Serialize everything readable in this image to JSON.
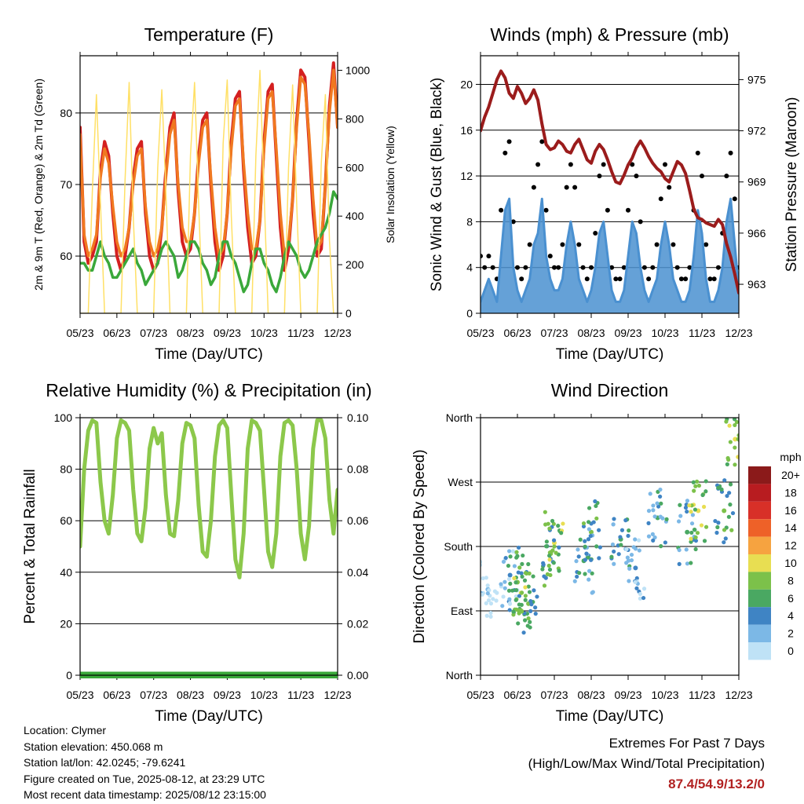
{
  "chart_data": [
    {
      "type": "line",
      "title": "Temperature (F)",
      "xlabel": "Time (Day/UTC)",
      "ylabel": "2m & 9m T (Red, Orange) & 2m Td (Green)",
      "y2label": "Solar Insolation (Yellow)",
      "x_ticks": [
        "05/23",
        "06/23",
        "07/23",
        "08/23",
        "09/23",
        "10/23",
        "11/23",
        "12/23"
      ],
      "ylim": [
        52,
        88
      ],
      "y_ticks": [
        60,
        70,
        80
      ],
      "y2lim": [
        0,
        1060
      ],
      "y2_ticks": [
        0,
        200,
        400,
        600,
        800,
        1000
      ],
      "grid": true,
      "series": [
        {
          "name": "2m T",
          "color": "#d42020",
          "values": [
            78,
            62,
            59,
            60,
            62,
            72,
            76,
            74,
            66,
            60,
            58,
            60,
            64,
            71,
            75,
            76,
            66,
            60,
            58,
            59,
            64,
            72,
            78,
            80,
            69,
            62,
            60,
            61,
            66,
            74,
            79,
            80,
            70,
            62,
            58,
            60,
            66,
            76,
            82,
            83,
            72,
            64,
            59,
            60,
            65,
            76,
            83,
            84,
            74,
            64,
            58,
            61,
            68,
            79,
            86,
            85,
            76,
            66,
            60,
            61,
            70,
            81,
            87,
            78
          ]
        },
        {
          "name": "9m T",
          "color": "#f07820",
          "values": [
            77,
            63,
            60,
            61,
            63,
            71,
            75,
            73,
            67,
            62,
            60,
            61,
            64,
            70,
            74,
            75,
            67,
            62,
            60,
            61,
            64,
            71,
            77,
            79,
            70,
            64,
            62,
            62,
            66,
            73,
            78,
            79,
            71,
            64,
            60,
            61,
            66,
            75,
            81,
            82,
            73,
            66,
            61,
            61,
            65,
            75,
            82,
            83,
            75,
            66,
            60,
            62,
            68,
            78,
            85,
            84,
            77,
            68,
            61,
            62,
            70,
            80,
            86,
            78
          ]
        },
        {
          "name": "2m Td",
          "color": "#3aa83a",
          "values": [
            59,
            59,
            58,
            58,
            60,
            62,
            60,
            59,
            57,
            57,
            58,
            59,
            60,
            61,
            59,
            58,
            56,
            57,
            58,
            59,
            61,
            62,
            61,
            60,
            57,
            58,
            60,
            62,
            62,
            61,
            59,
            58,
            56,
            57,
            60,
            62,
            62,
            60,
            59,
            57,
            55,
            56,
            59,
            61,
            61,
            59,
            58,
            56,
            55,
            57,
            60,
            62,
            61,
            60,
            58,
            57,
            58,
            60,
            62,
            63,
            64,
            66,
            69,
            68
          ]
        },
        {
          "name": "Solar Insolation",
          "color": "#ffe066",
          "axis": "y2",
          "values": [
            0,
            0,
            0,
            500,
            900,
            450,
            0,
            0,
            0,
            0,
            0,
            550,
            950,
            400,
            0,
            0,
            0,
            0,
            0,
            600,
            920,
            500,
            0,
            0,
            0,
            0,
            0,
            650,
            950,
            450,
            0,
            0,
            0,
            0,
            0,
            700,
            960,
            400,
            0,
            0,
            0,
            0,
            0,
            650,
            1000,
            500,
            0,
            0,
            0,
            0,
            0,
            600,
            940,
            450,
            0,
            0,
            0,
            0,
            0,
            620,
            900,
            300,
            0,
            0
          ]
        }
      ]
    },
    {
      "type": "scatter",
      "title": "Winds (mph) & Pressure (mb)",
      "xlabel": "Time (Day/UTC)",
      "ylabel": "Sonic Wind & Gust (Blue, Black)",
      "y2label": "Station Pressure (Maroon)",
      "x_ticks": [
        "05/23",
        "06/23",
        "07/23",
        "08/23",
        "09/23",
        "10/23",
        "11/23",
        "12/23"
      ],
      "ylim": [
        0,
        22.5
      ],
      "y_ticks": [
        0,
        4,
        8,
        12,
        16,
        20
      ],
      "y2lim": [
        961.3,
        976.4
      ],
      "y2_ticks": [
        963,
        966,
        969,
        972,
        975
      ],
      "grid": true,
      "series": [
        {
          "name": "Sonic Wind",
          "color": "#4a90d0",
          "values": [
            1,
            2,
            3,
            2,
            1,
            5,
            9,
            10,
            4,
            2,
            1,
            2,
            3,
            6,
            7,
            10,
            5,
            3,
            2,
            2,
            3,
            6,
            8,
            6,
            3,
            2,
            1,
            2,
            4,
            7,
            8,
            5,
            2,
            1,
            1,
            2,
            5,
            8,
            7,
            4,
            2,
            1,
            2,
            3,
            6,
            8,
            6,
            3,
            2,
            1,
            1,
            2,
            5,
            9,
            7,
            3,
            1,
            1,
            2,
            4,
            8,
            10,
            6,
            2
          ]
        },
        {
          "name": "Gust",
          "color": "#000000",
          "values": [
            5,
            4,
            5,
            4,
            3,
            9,
            14,
            15,
            8,
            4,
            3,
            4,
            6,
            11,
            13,
            15,
            9,
            5,
            4,
            4,
            6,
            11,
            13,
            11,
            6,
            4,
            3,
            4,
            7,
            12,
            13,
            9,
            4,
            3,
            3,
            4,
            9,
            13,
            12,
            8,
            4,
            3,
            4,
            6,
            10,
            13,
            11,
            6,
            4,
            3,
            3,
            4,
            9,
            14,
            12,
            6,
            3,
            3,
            4,
            7,
            12,
            14,
            10,
            4
          ]
        },
        {
          "name": "Station Pressure",
          "color": "#9b1c1c",
          "axis": "y2",
          "values": [
            972.0,
            972.8,
            973.4,
            974.2,
            975.0,
            975.5,
            975.1,
            974.2,
            973.9,
            974.6,
            974.2,
            973.6,
            973.9,
            974.4,
            973.8,
            972.4,
            971.2,
            970.9,
            971.0,
            971.4,
            971.2,
            970.8,
            970.7,
            971.2,
            971.5,
            970.9,
            970.3,
            970.1,
            970.8,
            971.2,
            970.9,
            970.3,
            969.6,
            969.0,
            968.9,
            969.4,
            970.0,
            970.4,
            971.0,
            971.4,
            971.0,
            970.5,
            970.1,
            969.8,
            969.6,
            969.2,
            969.0,
            969.6,
            970.2,
            970.0,
            969.5,
            968.5,
            967.4,
            966.9,
            966.8,
            966.6,
            966.5,
            966.4,
            966.8,
            966.5,
            965.4,
            964.6,
            963.6,
            962.5
          ]
        }
      ]
    },
    {
      "type": "line",
      "title": "Relative Humidity (%) & Precipitation (in)",
      "xlabel": "Time (Day/UTC)",
      "ylabel": "Percent & Total Rainfall",
      "x_ticks": [
        "05/23",
        "06/23",
        "07/23",
        "08/23",
        "09/23",
        "10/23",
        "11/23",
        "12/23"
      ],
      "ylim": [
        0,
        100
      ],
      "y_ticks": [
        0,
        20,
        40,
        60,
        80,
        100
      ],
      "y2lim": [
        0,
        0.1
      ],
      "y2_ticks": [
        "0.00",
        "0.02",
        "0.04",
        "0.06",
        "0.08",
        "0.10"
      ],
      "grid": true,
      "series": [
        {
          "name": "Relative Humidity",
          "color": "#8cc84b",
          "values": [
            50,
            80,
            95,
            99,
            98,
            75,
            60,
            55,
            70,
            92,
            99,
            98,
            95,
            72,
            55,
            52,
            65,
            88,
            96,
            90,
            94,
            70,
            55,
            54,
            68,
            90,
            98,
            97,
            92,
            66,
            48,
            46,
            60,
            85,
            97,
            99,
            96,
            70,
            45,
            38,
            55,
            88,
            99,
            98,
            95,
            72,
            48,
            42,
            55,
            85,
            98,
            99,
            97,
            80,
            55,
            45,
            58,
            88,
            99,
            99,
            92,
            68,
            55,
            72
          ]
        },
        {
          "name": "Total Precipitation",
          "color": "#3aa83a",
          "axis": "y2",
          "values": [
            0,
            0,
            0,
            0,
            0,
            0,
            0,
            0
          ]
        }
      ]
    },
    {
      "type": "scatter",
      "title": "Wind Direction",
      "xlabel": "Time (Day/UTC)",
      "ylabel": "Direction (Colored By Speed)",
      "x_ticks": [
        "05/23",
        "06/23",
        "07/23",
        "08/23",
        "09/23",
        "10/23",
        "11/23",
        "12/23"
      ],
      "ylim": [
        0,
        360
      ],
      "y_ticks": [
        {
          "value": 0,
          "label": "North"
        },
        {
          "value": 90,
          "label": "East"
        },
        {
          "value": 180,
          "label": "South"
        },
        {
          "value": 270,
          "label": "West"
        },
        {
          "value": 360,
          "label": "North"
        }
      ],
      "grid": true,
      "colorbar": {
        "title": "mph",
        "labels": [
          "20+",
          "18",
          "16",
          "14",
          "12",
          "10",
          "8",
          "6",
          "4",
          "2",
          "0"
        ],
        "colors": [
          "#8b1a1a",
          "#b81c20",
          "#d83028",
          "#ee6128",
          "#f6a340",
          "#e8de52",
          "#7cc14a",
          "#4aa862",
          "#3f84c4",
          "#7cb8e6",
          "#bfe2f6"
        ]
      },
      "points_summary": [
        {
          "x": 0.2,
          "dir": 120,
          "speed": 2
        },
        {
          "x": 0.8,
          "dir": 140,
          "speed": 4
        },
        {
          "x": 1.0,
          "dir": 130,
          "speed": 8
        },
        {
          "x": 1.1,
          "dir": 115,
          "speed": 10
        },
        {
          "x": 1.3,
          "dir": 100,
          "speed": 8
        },
        {
          "x": 1.9,
          "dir": 170,
          "speed": 8
        },
        {
          "x": 2.0,
          "dir": 185,
          "speed": 10
        },
        {
          "x": 2.8,
          "dir": 160,
          "speed": 6
        },
        {
          "x": 3.0,
          "dir": 200,
          "speed": 8
        },
        {
          "x": 3.8,
          "dir": 190,
          "speed": 6
        },
        {
          "x": 4.2,
          "dir": 150,
          "speed": 4
        },
        {
          "x": 4.8,
          "dir": 220,
          "speed": 6
        },
        {
          "x": 5.6,
          "dir": 200,
          "speed": 6
        },
        {
          "x": 5.9,
          "dir": 230,
          "speed": 10
        },
        {
          "x": 6.6,
          "dir": 230,
          "speed": 8
        },
        {
          "x": 6.9,
          "dir": 330,
          "speed": 10
        }
      ]
    }
  ],
  "footer": {
    "location": "Location: Clymer",
    "elevation": "Station elevation: 450.068 m",
    "latlon": "Station lat/lon: 42.0245; -79.6241",
    "created": "Figure created on Tue, 2025-08-12, at 23:29 UTC",
    "recent": "Most recent data timestamp: 2025/08/12 23:15:00"
  },
  "extremes": {
    "line1": "Extremes For Past 7 Days",
    "line2": "(High/Low/Max Wind/Total Precipitation)",
    "values": "87.4/54.9/13.2/0"
  }
}
